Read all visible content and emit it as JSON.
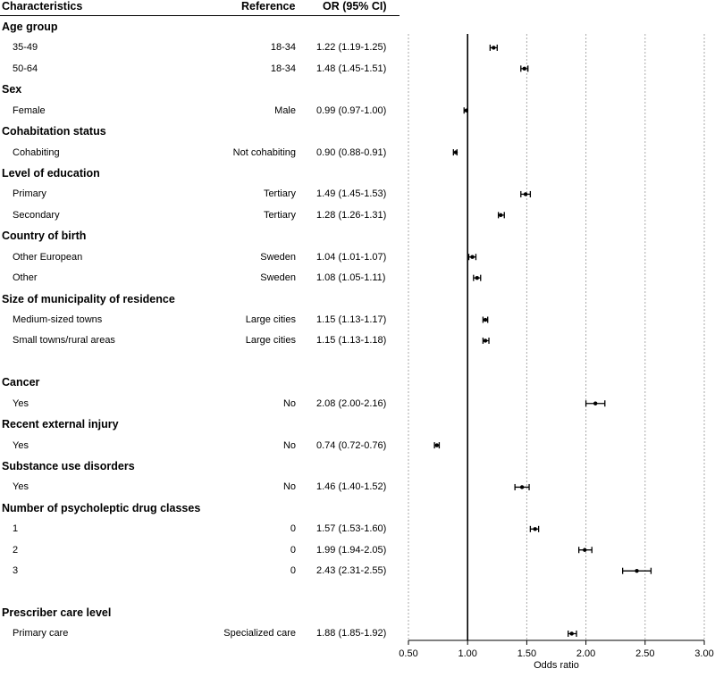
{
  "header": {
    "characteristics": "Characteristics",
    "reference": "Reference",
    "or": "OR (95% CI)"
  },
  "chart_data": {
    "type": "forest",
    "xlabel": "Odds ratio",
    "xlim": [
      0.5,
      3.0
    ],
    "xticks": [
      "0.50",
      "1.00",
      "1.50",
      "2.00",
      "2.50",
      "3.00"
    ],
    "reference_line": 1.0,
    "grid": "vertical dotted",
    "rows": [
      {
        "type": "group",
        "label": "Age group"
      },
      {
        "type": "item",
        "label": "35-49",
        "ref": "18-34",
        "or_text": "1.22 (1.19-1.25)",
        "or": 1.22,
        "lo": 1.19,
        "hi": 1.25
      },
      {
        "type": "item",
        "label": "50-64",
        "ref": "18-34",
        "or_text": "1.48 (1.45-1.51)",
        "or": 1.48,
        "lo": 1.45,
        "hi": 1.51
      },
      {
        "type": "group",
        "label": "Sex"
      },
      {
        "type": "item",
        "label": "Female",
        "ref": "Male",
        "or_text": "0.99 (0.97-1.00)",
        "or": 0.99,
        "lo": 0.97,
        "hi": 1.0
      },
      {
        "type": "group",
        "label": "Cohabitation status"
      },
      {
        "type": "item",
        "label": "Cohabiting",
        "ref": "Not cohabiting",
        "or_text": "0.90 (0.88-0.91)",
        "or": 0.9,
        "lo": 0.88,
        "hi": 0.91
      },
      {
        "type": "group",
        "label": "Level of education"
      },
      {
        "type": "item",
        "label": "Primary",
        "ref": "Tertiary",
        "or_text": "1.49 (1.45-1.53)",
        "or": 1.49,
        "lo": 1.45,
        "hi": 1.53
      },
      {
        "type": "item",
        "label": "Secondary",
        "ref": "Tertiary",
        "or_text": "1.28 (1.26-1.31)",
        "or": 1.28,
        "lo": 1.26,
        "hi": 1.31
      },
      {
        "type": "group",
        "label": "Country of birth"
      },
      {
        "type": "item",
        "label": "Other European",
        "ref": "Sweden",
        "or_text": "1.04 (1.01-1.07)",
        "or": 1.04,
        "lo": 1.01,
        "hi": 1.07
      },
      {
        "type": "item",
        "label": "Other",
        "ref": "Sweden",
        "or_text": "1.08 (1.05-1.11)",
        "or": 1.08,
        "lo": 1.05,
        "hi": 1.11
      },
      {
        "type": "group",
        "label": "Size of municipality of residence"
      },
      {
        "type": "item",
        "label": "Medium-sized towns",
        "ref": "Large cities",
        "or_text": "1.15 (1.13-1.17)",
        "or": 1.15,
        "lo": 1.13,
        "hi": 1.17
      },
      {
        "type": "item",
        "label": "Small towns/rural areas",
        "ref": "Large cities",
        "or_text": "1.15 (1.13-1.18)",
        "or": 1.15,
        "lo": 1.13,
        "hi": 1.18
      },
      {
        "type": "blank"
      },
      {
        "type": "group",
        "label": "Cancer"
      },
      {
        "type": "item",
        "label": "Yes",
        "ref": "No",
        "or_text": "2.08 (2.00-2.16)",
        "or": 2.08,
        "lo": 2.0,
        "hi": 2.16
      },
      {
        "type": "group",
        "label": "Recent external injury"
      },
      {
        "type": "item",
        "label": "Yes",
        "ref": "No",
        "or_text": "0.74 (0.72-0.76)",
        "or": 0.74,
        "lo": 0.72,
        "hi": 0.76
      },
      {
        "type": "group",
        "label": "Substance use disorders"
      },
      {
        "type": "item",
        "label": "Yes",
        "ref": "No",
        "or_text": "1.46 (1.40-1.52)",
        "or": 1.46,
        "lo": 1.4,
        "hi": 1.52
      },
      {
        "type": "group",
        "label": "Number of psycholeptic drug classes"
      },
      {
        "type": "item",
        "label": "1",
        "ref": "0",
        "or_text": "1.57 (1.53-1.60)",
        "or": 1.57,
        "lo": 1.53,
        "hi": 1.6
      },
      {
        "type": "item",
        "label": "2",
        "ref": "0",
        "or_text": "1.99 (1.94-2.05)",
        "or": 1.99,
        "lo": 1.94,
        "hi": 2.05
      },
      {
        "type": "item",
        "label": "3",
        "ref": "0",
        "or_text": "2.43 (2.31-2.55)",
        "or": 2.43,
        "lo": 2.31,
        "hi": 2.55
      },
      {
        "type": "blank"
      },
      {
        "type": "group",
        "label": "Prescriber care level"
      },
      {
        "type": "item",
        "label": "Primary care",
        "ref": "Specialized care",
        "or_text": "1.88 (1.85-1.92)",
        "or": 1.88,
        "lo": 1.85,
        "hi": 1.92
      }
    ]
  }
}
